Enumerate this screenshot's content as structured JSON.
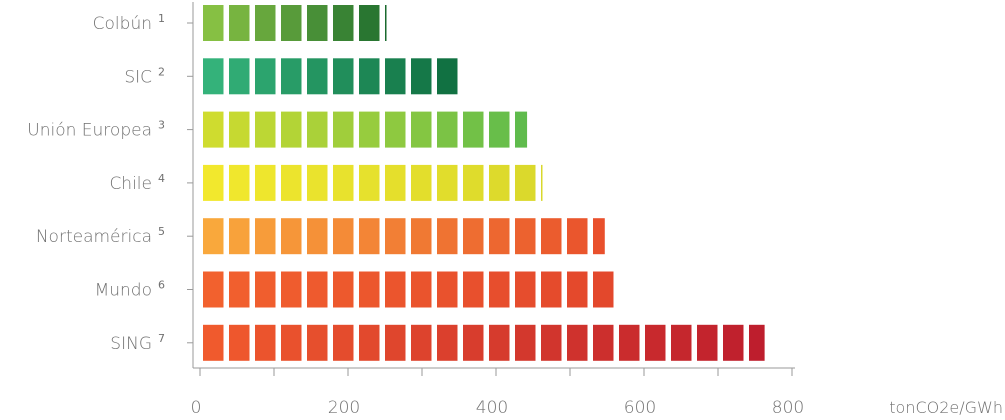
{
  "chart_data": {
    "type": "bar",
    "orientation": "horizontal",
    "categories": [
      "Colbún",
      "SIC",
      "Unión Europea",
      "Chile",
      "Norteamérica",
      "Mundo",
      "SING"
    ],
    "footnotes": [
      "1",
      "2",
      "3",
      "4",
      "5",
      "6",
      "7"
    ],
    "values": [
      252,
      352,
      442,
      462,
      547,
      565,
      763
    ],
    "xlim": [
      0,
      800
    ],
    "x_ticks": [
      "0",
      "200",
      "400",
      "600",
      "800"
    ],
    "unit_label": "tonCO2e/GWh",
    "grid": false,
    "bar_colors": [
      [
        "#86c043",
        "#1a6a2e"
      ],
      [
        "#34b27a",
        "#0d6a3c"
      ],
      [
        "#cfdc2f",
        "#5fbb4c"
      ],
      [
        "#f2e82d",
        "#d9d82c"
      ],
      [
        "#f9a83c",
        "#e9502c"
      ],
      [
        "#f2612e",
        "#e2462c"
      ],
      [
        "#f05a2d",
        "#be1e2d"
      ]
    ]
  }
}
